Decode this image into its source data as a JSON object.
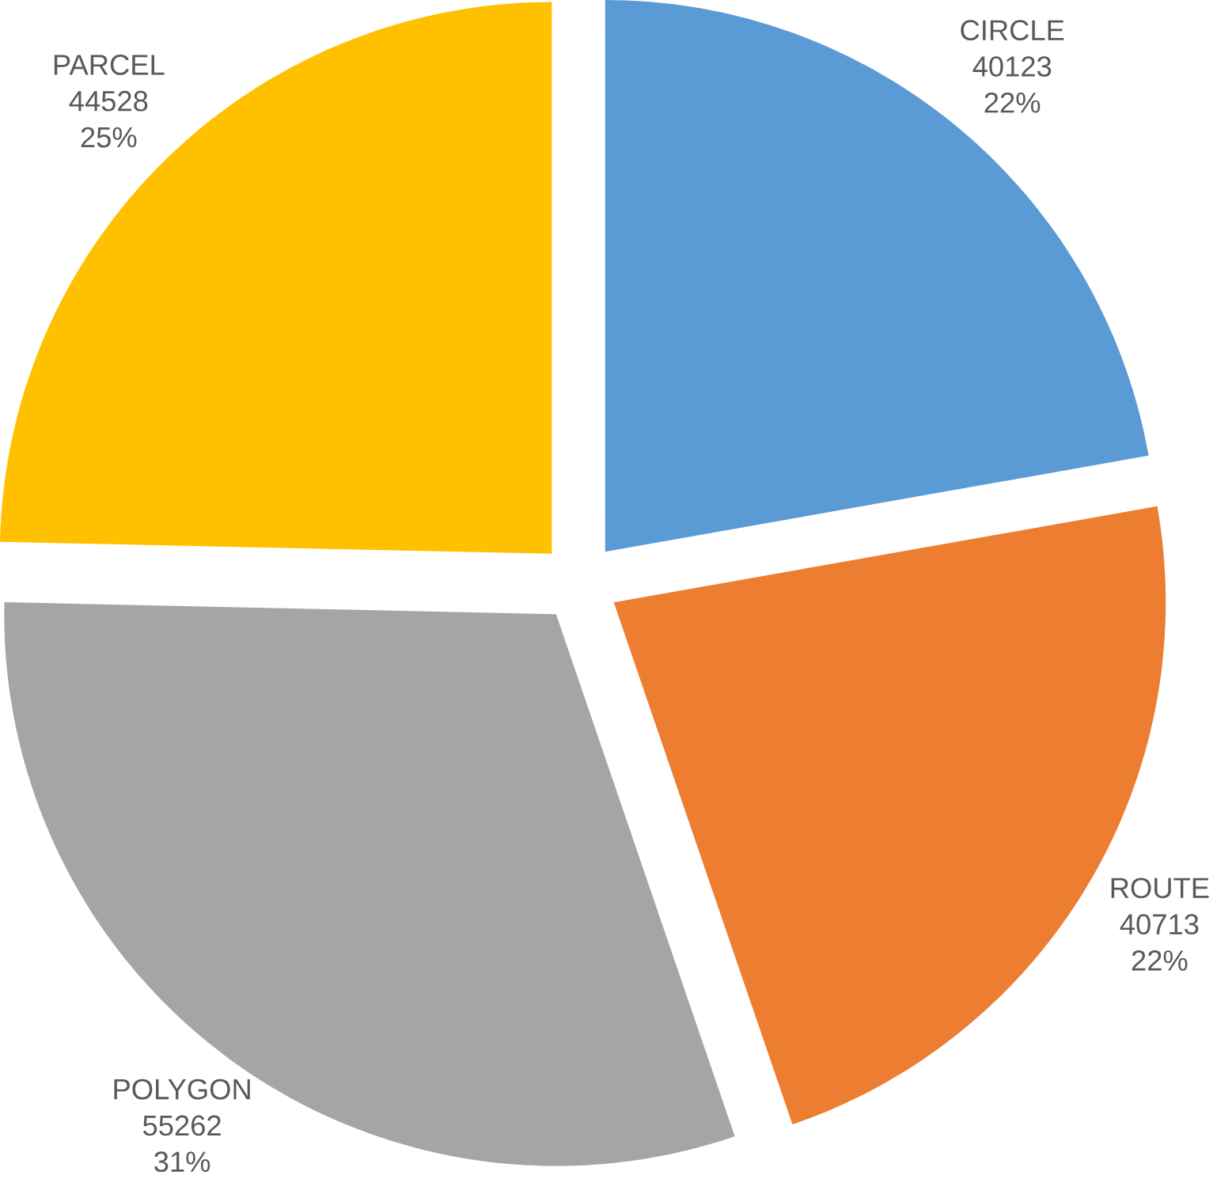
{
  "chart_data": {
    "type": "pie",
    "categories": [
      "CIRCLE",
      "ROUTE",
      "POLYGON",
      "PARCEL"
    ],
    "values": [
      40123,
      40713,
      55262,
      44528
    ],
    "colors": [
      "#5b9bd5",
      "#ed7d31",
      "#a5a5a5",
      "#ffc000"
    ],
    "value_labels": [
      "40123",
      "40713",
      "55262",
      "44528"
    ],
    "annotations": [
      {
        "text": "22%",
        "x": "CIRCLE"
      },
      {
        "text": "22%",
        "x": "ROUTE"
      },
      {
        "text": "31%",
        "x": "POLYGON"
      },
      {
        "text": "25%",
        "x": "PARCEL"
      }
    ]
  }
}
